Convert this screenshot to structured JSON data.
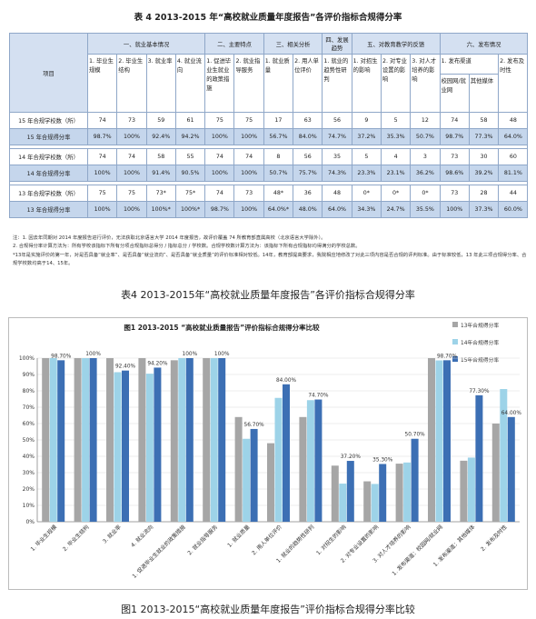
{
  "table": {
    "title": "表 4  2013-2015 年“高校就业质量年度报告”各评价指标合规得分率",
    "item_header": "项目",
    "groups": [
      {
        "label": "一、就业基本情况",
        "span": 4
      },
      {
        "label": "二、主要特点",
        "span": 2
      },
      {
        "label": "三、相关分析",
        "span": 2
      },
      {
        "label": "四、发展趋势",
        "span": 1
      },
      {
        "label": "五、对教育教学的反馈",
        "span": 3
      },
      {
        "label": "六、发布情况",
        "span": 3
      }
    ],
    "sub_headers": [
      "1. 毕业生规模",
      "2. 毕业生结构",
      "3. 就业率",
      "4. 就业流向",
      "1. 促进毕业生就业的政策措施",
      "2. 就业指导服务",
      "1. 就业质量",
      "2. 用人单位评价",
      "1. 就业的趋势性研判",
      "1. 对招生的影响",
      "2. 对专业设置的影响",
      "3. 对人才培养的影响"
    ],
    "release_header": "1. 发布渠道",
    "release_sub": [
      "校园网/就业网",
      "其他媒体"
    ],
    "timeliness_header": "2. 发布及时性",
    "rows": [
      {
        "label": "15 年合规学校数（所）",
        "values": [
          "74",
          "73",
          "59",
          "61",
          "75",
          "75",
          "17",
          "63",
          "56",
          "9",
          "5",
          "12",
          "74",
          "58",
          "48"
        ],
        "zebra": false
      },
      {
        "label": "15 年合规得分率",
        "values": [
          "98.7%",
          "100%",
          "92.4%",
          "94.2%",
          "100%",
          "100%",
          "56.7%",
          "84.0%",
          "74.7%",
          "37.2%",
          "35.3%",
          "50.7%",
          "98.7%",
          "77.3%",
          "64.0%"
        ],
        "zebra": true
      },
      {
        "label": "14 年合规学校数（所）",
        "values": [
          "74",
          "74",
          "58",
          "55",
          "74",
          "74",
          "8",
          "56",
          "35",
          "5",
          "4",
          "3",
          "73",
          "30",
          "60"
        ],
        "zebra": false
      },
      {
        "label": "14 年合规得分率",
        "values": [
          "100%",
          "100%",
          "91.4%",
          "90.5%",
          "100%",
          "100%",
          "50.7%",
          "75.7%",
          "74.3%",
          "23.3%",
          "23.1%",
          "36.2%",
          "98.6%",
          "39.2%",
          "81.1%"
        ],
        "zebra": true
      },
      {
        "label": "13 年合规学校数（所）",
        "values": [
          "75",
          "75",
          "73*",
          "75*",
          "74",
          "73",
          "48*",
          "36",
          "48",
          "0*",
          "0*",
          "0*",
          "73",
          "28",
          "44"
        ],
        "zebra": false
      },
      {
        "label": "13 年合规得分率",
        "values": [
          "100%",
          "100%",
          "100%*",
          "100%*",
          "98.7%",
          "100%",
          "64.0%*",
          "48.0%",
          "64.0%",
          "34.3%",
          "24.7%",
          "35.5%",
          "100%",
          "37.3%",
          "60.0%"
        ],
        "zebra": true
      }
    ]
  },
  "notes": [
    "注：1. 因去年同期对 2014 年度报告进行评价，无法获取北京语言大学 2014 年度报告，故评价覆盖 74 所教育部直属高校（北京语言大学除外）。",
    "2. 合规得分率计算方法为：所有学校该指标下所有分项合规指标总得分 / 指标总分 / 学校数。合规学校数计算方法为：该指标下所有合规指标均得满分的学校总数。",
    "*13年是实施评价的第一年，对是否具备“就业率”、是否具备“就业流向”、是否具备“就业质量”的评价标准相对较低。14年，教育部提高要求，我院相应地修改了对此三项内容是否合规的评判标准。由于标准较低，13 年此三项合规得分率、合规学校数均高于14、15年。"
  ],
  "caption_table": "表4 2013-2015年“高校就业质量年度报告”各评价指标合规得分率",
  "caption_chart": "图1 2013-2015“高校就业质量年度报告”评价指标合规得分率比较",
  "chart_data": {
    "type": "bar",
    "title": "图1  2013-2015 “高校就业质量报告”评价指标合规得分率比较",
    "categories": [
      "1. 毕业生规模",
      "2. 毕业生结构",
      "3. 就业率",
      "4. 就业流向",
      "1. 促进毕业生就业的政策措施",
      "2. 就业指导服务",
      "1. 就业质量",
      "2. 用人单位评价",
      "1. 就业的趋势性研判",
      "1. 对招生的影响",
      "2. 对专业设置的影响",
      "3. 对人才培养的影响",
      "1. 发布渠道：校园网/就业网",
      "1. 发布渠道：其他媒体",
      "2. 发布及时性"
    ],
    "series": [
      {
        "name": "13年合规得分率",
        "color": "#a6a6a6",
        "values": [
          100,
          100,
          100,
          100,
          98.7,
          100,
          64.0,
          48.0,
          64.0,
          34.3,
          24.7,
          35.5,
          100,
          37.3,
          60.0
        ]
      },
      {
        "name": "14年合规得分率",
        "color": "#9dd3e8",
        "values": [
          100,
          100,
          91.4,
          90.5,
          100,
          100,
          50.7,
          75.7,
          74.3,
          23.3,
          23.1,
          36.2,
          98.6,
          39.2,
          81.1
        ]
      },
      {
        "name": "15年合规得分率",
        "color": "#3c6fb4",
        "values": [
          98.7,
          100,
          92.4,
          94.2,
          100,
          100,
          56.7,
          84.0,
          74.7,
          37.2,
          35.3,
          50.7,
          98.7,
          77.3,
          64.0
        ]
      }
    ],
    "data_labels": [
      "98.70%",
      "100%",
      "92.40%",
      "94.20%",
      "100%",
      "100%",
      "56.70%",
      "84.00%",
      "74.70%",
      "37.20%",
      "35.30%",
      "50.70%",
      "98.70%",
      "77.30%",
      "64.00%"
    ],
    "yticks": [
      "0%",
      "10%",
      "20%",
      "30%",
      "40%",
      "50%",
      "60%",
      "70%",
      "80%",
      "90%",
      "100%"
    ],
    "ylim": [
      0,
      100
    ],
    "legend": "top-right",
    "grid": true
  }
}
